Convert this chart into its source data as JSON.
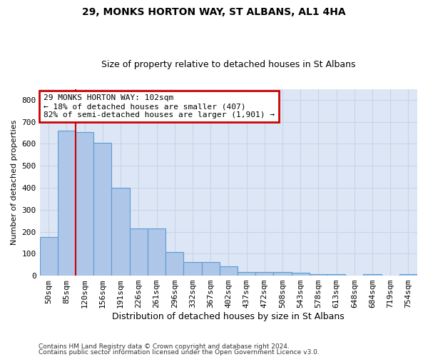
{
  "title1": "29, MONKS HORTON WAY, ST ALBANS, AL1 4HA",
  "title2": "Size of property relative to detached houses in St Albans",
  "xlabel": "Distribution of detached houses by size in St Albans",
  "ylabel": "Number of detached properties",
  "footer1": "Contains HM Land Registry data © Crown copyright and database right 2024.",
  "footer2": "Contains public sector information licensed under the Open Government Licence v3.0.",
  "categories": [
    "50sqm",
    "85sqm",
    "120sqm",
    "156sqm",
    "191sqm",
    "226sqm",
    "261sqm",
    "296sqm",
    "332sqm",
    "367sqm",
    "402sqm",
    "437sqm",
    "472sqm",
    "508sqm",
    "543sqm",
    "578sqm",
    "613sqm",
    "648sqm",
    "684sqm",
    "719sqm",
    "754sqm"
  ],
  "values": [
    175,
    660,
    655,
    605,
    400,
    215,
    215,
    107,
    63,
    63,
    43,
    18,
    17,
    17,
    13,
    8,
    8,
    0,
    8,
    0,
    8
  ],
  "bar_color": "#aec6e8",
  "bar_edge_color": "#5b9bd5",
  "grid_color": "#c8d4e8",
  "background_color": "#dce6f5",
  "vline_x": 1.5,
  "vline_color": "#cc0000",
  "annotation_text": "29 MONKS HORTON WAY: 102sqm\n← 18% of detached houses are smaller (407)\n82% of semi-detached houses are larger (1,901) →",
  "annotation_box_color": "white",
  "annotation_box_edge": "#cc0000",
  "ylim": [
    0,
    850
  ],
  "yticks": [
    0,
    100,
    200,
    300,
    400,
    500,
    600,
    700,
    800
  ]
}
